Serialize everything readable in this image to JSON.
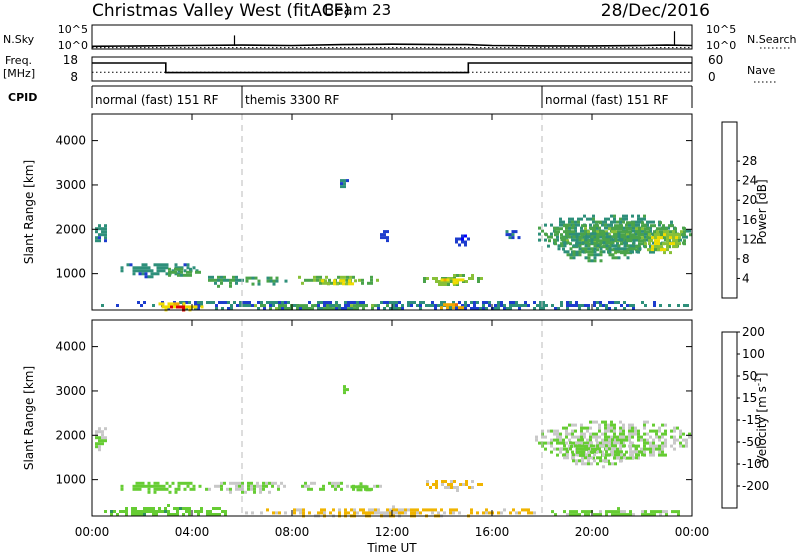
{
  "header": {
    "title": "Christmas Valley West (fitACF)",
    "beam": "Beam 23",
    "date": "28/Dec/2016"
  },
  "sky_panel": {
    "left_label": "N.Sky",
    "left_ticks": [
      "10^5",
      "10^0"
    ],
    "right_ticks": [
      "10^5",
      "10^0"
    ],
    "right_label": "N.Search"
  },
  "freq_panel": {
    "left_label_1": "Freq.",
    "left_label_2": "[MHz]",
    "left_ticks": [
      "18",
      "8"
    ],
    "right_ticks": [
      "60",
      "0"
    ],
    "right_label": "Nave"
  },
  "cpid": {
    "label": "CPID",
    "segments": [
      {
        "label": "normal (fast) 151 RF",
        "start_h": 0,
        "end_h": 6
      },
      {
        "label": "themis 3300 RF",
        "start_h": 6,
        "end_h": 18
      },
      {
        "label": "normal (fast) 151 RF",
        "start_h": 18,
        "end_h": 24
      }
    ]
  },
  "axes": {
    "y_label": "Slant Range [km]",
    "y_ticks": [
      "1000",
      "2000",
      "3000",
      "4000"
    ],
    "x_ticks": [
      "00:00",
      "04:00",
      "08:00",
      "12:00",
      "16:00",
      "20:00",
      "00:00"
    ],
    "x_label": "Time UT"
  },
  "power_colorbar": {
    "label": "Power [dB]",
    "ticks": [
      "4",
      "8",
      "12",
      "16",
      "20",
      "24",
      "28"
    ],
    "colors": [
      "#0000ff",
      "#1d3ccd",
      "#2e8f7a",
      "#4aa34a",
      "#88c038",
      "#f0dc00",
      "#f0a800",
      "#f06a00",
      "#e00000"
    ]
  },
  "velocity_colorbar": {
    "label": "Velocity [m s^-1]",
    "ticks": [
      "200",
      "100",
      "50",
      "15",
      "-15",
      "-50",
      "-100",
      "-200"
    ],
    "colors": [
      "#1a2fa8",
      "#2f7fbf",
      "#2e8f5e",
      "#66cc33",
      "#c8c8c8",
      "#f0b400",
      "#f07800",
      "#e81010"
    ]
  },
  "chart_data": [
    {
      "type": "line",
      "name": "sky-search-counts",
      "x_range_h": [
        0,
        24
      ],
      "ylim_log": [
        0,
        5
      ],
      "series": [
        {
          "name": "N.Sky",
          "x_h": [
            0,
            2,
            4,
            6,
            8,
            10,
            12,
            14,
            15,
            16,
            18,
            20,
            22,
            23,
            24
          ],
          "y_log": [
            0.4,
            0.5,
            0.6,
            0.7,
            0.6,
            0.8,
            0.9,
            0.8,
            0.8,
            0.6,
            0.5,
            0.5,
            0.6,
            0.7,
            0.6
          ]
        },
        {
          "name": "N.Search",
          "x_h": [
            0,
            6,
            12,
            18,
            24
          ],
          "y_log": [
            0.1,
            0.1,
            0.1,
            0.1,
            0.1
          ]
        }
      ],
      "spikes": [
        {
          "x_h": 5.7,
          "y_log": 3.0
        },
        {
          "x_h": 23.3,
          "y_log": 4.0
        }
      ]
    },
    {
      "type": "line",
      "name": "frequency-nave",
      "x_range_h": [
        0,
        24
      ],
      "series": [
        {
          "name": "Freq.",
          "ylim": [
            8,
            18
          ],
          "x_h": [
            0,
            2.95,
            2.95,
            15.05,
            15.05,
            24
          ],
          "y": [
            15.5,
            15.5,
            11.5,
            11.5,
            15.5,
            15.5
          ]
        },
        {
          "name": "Nave",
          "ylim": [
            0,
            60
          ],
          "x_h": [
            0,
            24
          ],
          "y": [
            22,
            22
          ]
        }
      ]
    },
    {
      "type": "heatmap",
      "name": "power",
      "x_range_h": [
        0,
        24
      ],
      "ylim_km": [
        180,
        4600
      ],
      "clim": [
        0,
        30
      ],
      "regions": [
        {
          "t0": 0.0,
          "t1": 0.6,
          "r0": 1650,
          "r1": 2250,
          "v": 8
        },
        {
          "t0": 0.9,
          "t1": 4.4,
          "r0": 950,
          "r1": 1300,
          "v": 8
        },
        {
          "t0": 2.8,
          "t1": 4.4,
          "r0": 950,
          "r1": 1200,
          "v": 11
        },
        {
          "t0": 4.4,
          "t1": 6.0,
          "r0": 730,
          "r1": 1020,
          "v": 10
        },
        {
          "t0": 5.9,
          "t1": 7.8,
          "r0": 760,
          "r1": 1000,
          "v": 11
        },
        {
          "t0": 8.0,
          "t1": 11.5,
          "r0": 760,
          "r1": 1020,
          "v": 13
        },
        {
          "t0": 8.8,
          "t1": 10.8,
          "r0": 790,
          "r1": 940,
          "v": 17
        },
        {
          "t0": 13.0,
          "t1": 15.6,
          "r0": 780,
          "r1": 1060,
          "v": 13
        },
        {
          "t0": 13.7,
          "t1": 15.1,
          "r0": 820,
          "r1": 960,
          "v": 19
        },
        {
          "t0": 9.8,
          "t1": 10.2,
          "r0": 2950,
          "r1": 3200,
          "v": 6
        },
        {
          "t0": 11.4,
          "t1": 11.9,
          "r0": 1700,
          "r1": 2050,
          "v": 6
        },
        {
          "t0": 14.4,
          "t1": 15.1,
          "r0": 1600,
          "r1": 1950,
          "v": 5
        },
        {
          "t0": 16.3,
          "t1": 17.2,
          "r0": 1800,
          "r1": 2050,
          "v": 6
        },
        {
          "t0": 17.6,
          "t1": 24.0,
          "r0": 1450,
          "r1": 2400,
          "v": 9
        },
        {
          "t0": 18.0,
          "t1": 24.0,
          "r0": 1500,
          "r1": 2250,
          "v": 12
        },
        {
          "t0": 18.5,
          "t1": 22.0,
          "r0": 1300,
          "r1": 2000,
          "v": 10
        },
        {
          "t0": 22.0,
          "t1": 23.6,
          "r0": 1450,
          "r1": 2050,
          "v": 16
        },
        {
          "t0": 0.0,
          "t1": 24.0,
          "r0": 190,
          "r1": 450,
          "v": 7
        },
        {
          "t0": 2.3,
          "t1": 4.4,
          "r0": 200,
          "r1": 420,
          "v": 19
        },
        {
          "t0": 3.0,
          "t1": 3.8,
          "r0": 200,
          "r1": 350,
          "v": 28
        },
        {
          "t0": 13.8,
          "t1": 14.9,
          "r0": 220,
          "r1": 400,
          "v": 22
        },
        {
          "t0": 6.0,
          "t1": 13.0,
          "r0": 210,
          "r1": 380,
          "v": 12
        }
      ]
    },
    {
      "type": "heatmap",
      "name": "velocity",
      "x_range_h": [
        0,
        24
      ],
      "ylim_km": [
        180,
        4600
      ],
      "clim": [
        -220,
        220
      ],
      "regions": [
        {
          "t0": 0.0,
          "t1": 0.6,
          "r0": 1650,
          "r1": 2250,
          "v": 0
        },
        {
          "t0": 0.9,
          "t1": 4.4,
          "r0": 720,
          "r1": 1020,
          "v": 30
        },
        {
          "t0": 4.4,
          "t1": 7.8,
          "r0": 720,
          "r1": 1020,
          "v": 0
        },
        {
          "t0": 8.0,
          "t1": 11.5,
          "r0": 760,
          "r1": 1020,
          "v": 0
        },
        {
          "t0": 10.1,
          "t1": 11.3,
          "r0": 760,
          "r1": 940,
          "v": 40
        },
        {
          "t0": 13.0,
          "t1": 15.6,
          "r0": 780,
          "r1": 1060,
          "v": -60
        },
        {
          "t0": 9.8,
          "t1": 10.2,
          "r0": 2950,
          "r1": 3200,
          "v": 30
        },
        {
          "t0": 17.6,
          "t1": 24.0,
          "r0": 1450,
          "r1": 2400,
          "v": 0
        },
        {
          "t0": 18.6,
          "t1": 22.0,
          "r0": 1300,
          "r1": 2000,
          "v": 0
        },
        {
          "t0": 19.0,
          "t1": 20.2,
          "r0": 1550,
          "r1": 1850,
          "v": 25
        },
        {
          "t0": 0.0,
          "t1": 6.0,
          "r0": 190,
          "r1": 450,
          "v": 30
        },
        {
          "t0": 6.0,
          "t1": 18.0,
          "r0": 190,
          "r1": 420,
          "v": -60
        },
        {
          "t0": 18.0,
          "t1": 24.0,
          "r0": 190,
          "r1": 380,
          "v": 20
        }
      ]
    }
  ]
}
